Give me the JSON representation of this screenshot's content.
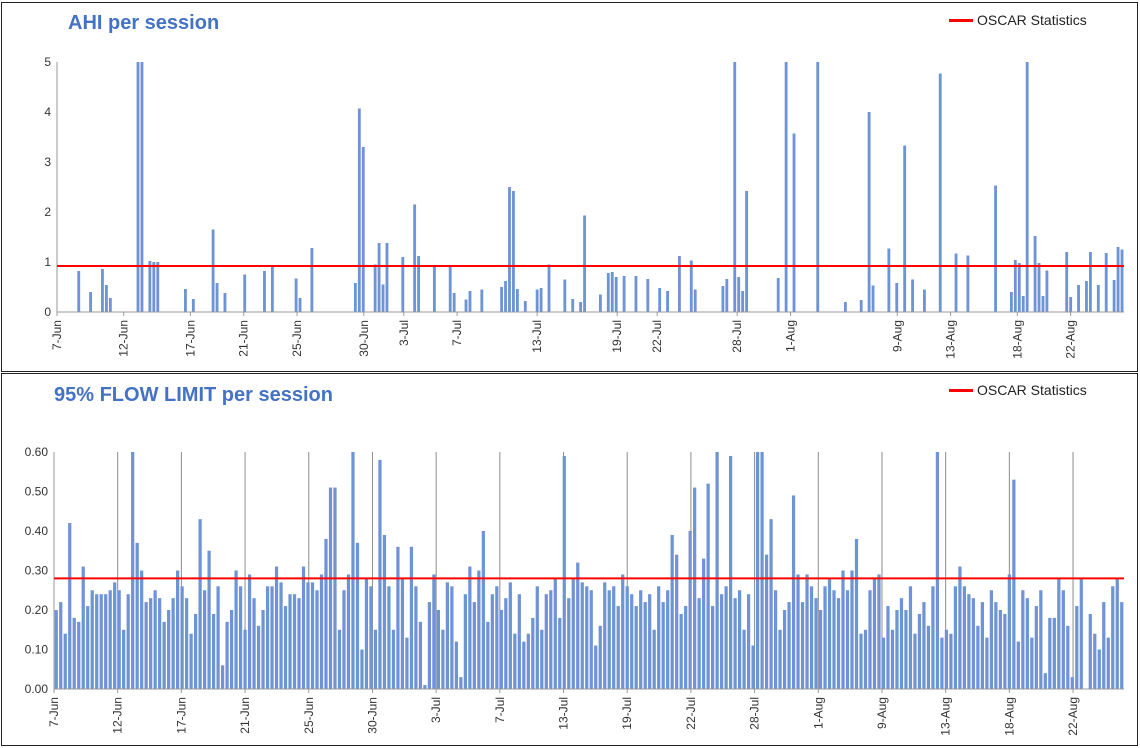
{
  "chart_data": [
    {
      "type": "bar",
      "title": "AHI per session",
      "legend": "OSCAR Statistics",
      "reference_line": 0.92,
      "ylim": [
        0,
        5
      ],
      "yticks": [
        "0",
        "1",
        "2",
        "3",
        "4",
        "5"
      ],
      "date_ticks": [
        {
          "label": "7-Jun",
          "day": 0
        },
        {
          "label": "12-Jun",
          "day": 5
        },
        {
          "label": "17-Jun",
          "day": 10
        },
        {
          "label": "21-Jun",
          "day": 14
        },
        {
          "label": "25-Jun",
          "day": 18
        },
        {
          "label": "30-Jun",
          "day": 23
        },
        {
          "label": "3-Jul",
          "day": 26
        },
        {
          "label": "7-Jul",
          "day": 30
        },
        {
          "label": "13-Jul",
          "day": 36
        },
        {
          "label": "19-Jul",
          "day": 42
        },
        {
          "label": "22-Jul",
          "day": 45
        },
        {
          "label": "28-Jul",
          "day": 51
        },
        {
          "label": "1-Aug",
          "day": 55
        },
        {
          "label": "9-Aug",
          "day": 63
        },
        {
          "label": "13-Aug",
          "day": 67
        },
        {
          "label": "18-Aug",
          "day": 72
        },
        {
          "label": "22-Aug",
          "day": 76
        }
      ],
      "values": [
        0,
        0,
        0,
        0,
        0,
        0.82,
        0,
        0,
        0.4,
        0,
        0,
        0.86,
        0.54,
        0.28,
        0,
        0,
        0,
        0,
        0,
        0,
        5,
        5,
        0,
        1.02,
        1,
        1,
        0,
        0,
        0,
        0,
        0,
        0,
        0.46,
        0,
        0.26,
        0,
        0,
        0,
        0,
        1.65,
        0.58,
        0,
        0.38,
        0,
        0,
        0,
        0,
        0.75,
        0,
        0,
        0,
        0,
        0.82,
        0,
        0.92,
        0,
        0,
        0,
        0,
        0,
        0.67,
        0.28,
        0,
        0,
        1.28,
        0,
        0,
        0,
        0,
        0,
        0,
        0,
        0,
        0,
        0,
        0.58,
        4.07,
        3.3,
        0,
        0,
        0.95,
        1.38,
        0.55,
        1.38,
        0,
        0,
        0,
        1.1,
        0,
        0,
        2.15,
        1.12,
        0,
        0,
        0,
        0.92,
        0,
        0,
        0,
        0.92,
        0.38,
        0,
        0,
        0.25,
        0.42,
        0,
        0,
        0.45,
        0,
        0,
        0,
        0,
        0.5,
        0.62,
        2.5,
        2.42,
        0.46,
        0,
        0.22,
        0,
        0,
        0.45,
        0.48,
        0,
        0.95,
        0,
        0,
        0,
        0.65,
        0,
        0.26,
        0,
        0.2,
        1.93,
        0,
        0,
        0,
        0.35,
        0,
        0.78,
        0.8,
        0.7,
        0,
        0.72,
        0,
        0,
        0.72,
        0,
        0,
        0.66,
        0,
        0,
        0.48,
        0,
        0.42,
        0,
        0,
        1.12,
        0,
        0,
        1.03,
        0.45,
        0,
        0,
        0,
        0,
        0,
        0,
        0.52,
        0.66,
        0,
        5,
        0.7,
        0.42,
        2.42,
        0,
        0,
        0,
        0,
        0,
        0,
        0,
        0.68,
        0,
        5,
        0,
        3.57,
        0,
        0,
        0,
        0,
        0,
        5,
        0,
        0,
        0,
        0,
        0,
        0,
        0.2,
        0,
        0,
        0,
        0.24,
        0,
        4,
        0.53,
        0,
        0,
        0,
        1.27,
        0,
        0.58,
        0,
        3.33,
        0,
        0.65,
        0,
        0,
        0.45,
        0,
        0,
        0,
        4.77,
        0,
        0,
        0,
        1.17,
        0,
        0,
        1.13,
        0,
        0,
        0,
        0,
        0,
        0,
        2.53,
        0,
        0,
        0,
        0.4,
        1.04,
        0.98,
        0.32,
        5,
        0,
        1.52,
        0.98,
        0.32,
        0.83,
        0,
        0,
        0,
        0,
        1.2,
        0.3,
        0,
        0.54,
        0,
        0.62,
        1.2,
        0,
        0.54,
        0,
        1.18,
        0,
        0.64,
        1.3,
        1.25
      ]
    },
    {
      "type": "bar",
      "title": "95% FLOW LIMIT per session",
      "legend": "OSCAR Statistics",
      "reference_line": 0.28,
      "ylim": [
        0,
        0.6
      ],
      "yticks": [
        "0.00",
        "0.10",
        "0.20",
        "0.30",
        "0.40",
        "0.50",
        "0.60"
      ],
      "date_ticks": [
        {
          "label": "7-Jun",
          "day": 0
        },
        {
          "label": "12-Jun",
          "day": 5
        },
        {
          "label": "17-Jun",
          "day": 10
        },
        {
          "label": "21-Jun",
          "day": 15
        },
        {
          "label": "25-Jun",
          "day": 20
        },
        {
          "label": "30-Jun",
          "day": 25
        },
        {
          "label": "3-Jul",
          "day": 30
        },
        {
          "label": "7-Jul",
          "day": 35
        },
        {
          "label": "13-Jul",
          "day": 40
        },
        {
          "label": "19-Jul",
          "day": 45
        },
        {
          "label": "22-Jul",
          "day": 50
        },
        {
          "label": "28-Jul",
          "day": 55
        },
        {
          "label": "1-Aug",
          "day": 60
        },
        {
          "label": "9-Aug",
          "day": 65
        },
        {
          "label": "13-Aug",
          "day": 70
        },
        {
          "label": "18-Aug",
          "day": 75
        },
        {
          "label": "22-Aug",
          "day": 80
        }
      ],
      "values": [
        0.2,
        0.22,
        0.14,
        0.42,
        0.18,
        0.17,
        0.31,
        0.21,
        0.25,
        0.24,
        0.24,
        0.24,
        0.25,
        0.27,
        0.25,
        0.15,
        0.24,
        0.6,
        0.37,
        0.3,
        0.22,
        0.23,
        0.25,
        0.23,
        0.17,
        0.2,
        0.23,
        0.3,
        0.26,
        0.23,
        0.14,
        0.19,
        0.43,
        0.25,
        0.35,
        0.19,
        0.26,
        0.06,
        0.17,
        0.2,
        0.3,
        0.26,
        0.15,
        0.29,
        0.23,
        0.16,
        0.2,
        0.26,
        0.26,
        0.31,
        0.27,
        0.21,
        0.24,
        0.24,
        0.23,
        0.31,
        0.27,
        0.27,
        0.25,
        0.29,
        0.38,
        0.51,
        0.51,
        0.15,
        0.25,
        0.29,
        0.6,
        0.37,
        0.1,
        0.28,
        0.26,
        0.15,
        0.58,
        0.39,
        0.26,
        0.15,
        0.36,
        0.28,
        0.13,
        0.36,
        0.26,
        0.17,
        0.01,
        0.22,
        0.29,
        0.2,
        0.15,
        0.27,
        0.26,
        0.12,
        0.03,
        0.24,
        0.31,
        0.22,
        0.3,
        0.4,
        0.17,
        0.24,
        0.26,
        0.2,
        0.23,
        0.27,
        0.14,
        0.24,
        0.12,
        0.14,
        0.18,
        0.26,
        0.15,
        0.24,
        0.25,
        0.28,
        0.18,
        0.59,
        0.23,
        0.28,
        0.32,
        0.27,
        0.26,
        0.25,
        0.11,
        0.16,
        0.27,
        0.25,
        0.26,
        0.21,
        0.29,
        0.26,
        0.24,
        0.21,
        0.25,
        0.22,
        0.24,
        0.15,
        0.26,
        0.22,
        0.25,
        0.39,
        0.34,
        0.19,
        0.21,
        0.4,
        0.51,
        0.23,
        0.33,
        0.52,
        0.21,
        0.6,
        0.24,
        0.26,
        0.59,
        0.23,
        0.25,
        0.15,
        0.24,
        0.11,
        0.6,
        0.6,
        0.34,
        0.43,
        0.25,
        0.15,
        0.2,
        0.22,
        0.49,
        0.29,
        0.22,
        0.29,
        0.26,
        0.23,
        0.2,
        0.26,
        0.28,
        0.25,
        0.23,
        0.3,
        0.25,
        0.3,
        0.38,
        0.14,
        0.15,
        0.25,
        0.28,
        0.29,
        0.13,
        0.21,
        0.15,
        0.2,
        0.23,
        0.2,
        0.26,
        0.14,
        0.19,
        0.22,
        0.16,
        0.26,
        0.6,
        0.13,
        0.15,
        0.14,
        0.26,
        0.31,
        0.26,
        0.24,
        0.23,
        0.16,
        0.22,
        0.13,
        0.25,
        0.22,
        0.2,
        0.19,
        0.29,
        0.53,
        0.12,
        0.25,
        0.23,
        0.13,
        0.21,
        0.25,
        0.04,
        0.18,
        0.18,
        0.28,
        0.25,
        0.16,
        0.03,
        0.21,
        0.28,
        0,
        0.19,
        0.14,
        0.1,
        0.22,
        0.13,
        0.26,
        0.28,
        0.22
      ]
    }
  ]
}
